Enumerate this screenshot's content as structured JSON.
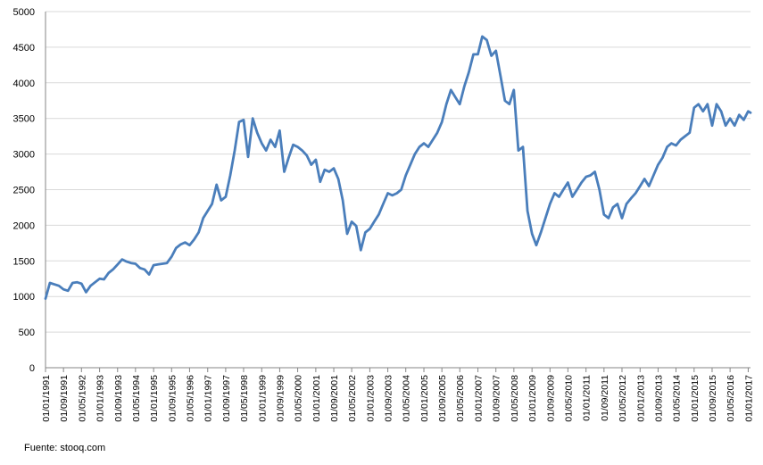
{
  "source_note": "Fuente: stooq.com",
  "chart_data": {
    "type": "line",
    "title": "",
    "xlabel": "",
    "ylabel": "",
    "ylim": [
      0,
      5000
    ],
    "yticks": [
      0,
      500,
      1000,
      1500,
      2000,
      2500,
      3000,
      3500,
      4000,
      4500,
      5000
    ],
    "grid": "horizontal",
    "legend": "none",
    "x_tick_labels": [
      "01/01/1991",
      "01/09/1991",
      "01/05/1992",
      "01/01/1993",
      "01/09/1993",
      "01/05/1994",
      "01/01/1995",
      "01/09/1995",
      "01/05/1996",
      "01/01/1997",
      "01/09/1997",
      "01/05/1998",
      "01/01/1999",
      "01/09/1999",
      "01/05/2000",
      "01/01/2001",
      "01/09/2001",
      "01/05/2002",
      "01/01/2003",
      "01/09/2003",
      "01/05/2004",
      "01/01/2005",
      "01/09/2005",
      "01/05/2006",
      "01/01/2007",
      "01/09/2007",
      "01/05/2008",
      "01/01/2009",
      "01/09/2009",
      "01/05/2010",
      "01/01/2011",
      "01/09/2011",
      "01/05/2012",
      "01/01/2013",
      "01/09/2013",
      "01/05/2014",
      "01/01/2015",
      "01/09/2015",
      "01/05/2016",
      "01/01/2017"
    ],
    "series": [
      {
        "color": "#4a7ebb",
        "points": [
          [
            "1991-01-01",
            970
          ],
          [
            "1991-03-01",
            1190
          ],
          [
            "1991-05-01",
            1170
          ],
          [
            "1991-07-01",
            1150
          ],
          [
            "1991-09-01",
            1100
          ],
          [
            "1991-11-01",
            1080
          ],
          [
            "1992-01-01",
            1190
          ],
          [
            "1992-03-01",
            1200
          ],
          [
            "1992-05-01",
            1180
          ],
          [
            "1992-07-01",
            1060
          ],
          [
            "1992-09-01",
            1150
          ],
          [
            "1992-11-01",
            1200
          ],
          [
            "1993-01-01",
            1250
          ],
          [
            "1993-03-01",
            1240
          ],
          [
            "1993-05-01",
            1330
          ],
          [
            "1993-07-01",
            1380
          ],
          [
            "1993-09-01",
            1450
          ],
          [
            "1993-11-01",
            1520
          ],
          [
            "1994-01-01",
            1490
          ],
          [
            "1994-03-01",
            1470
          ],
          [
            "1994-05-01",
            1460
          ],
          [
            "1994-07-01",
            1400
          ],
          [
            "1994-09-01",
            1380
          ],
          [
            "1994-11-01",
            1310
          ],
          [
            "1995-01-01",
            1440
          ],
          [
            "1995-03-01",
            1450
          ],
          [
            "1995-05-01",
            1460
          ],
          [
            "1995-07-01",
            1470
          ],
          [
            "1995-09-01",
            1560
          ],
          [
            "1995-11-01",
            1680
          ],
          [
            "1996-01-01",
            1730
          ],
          [
            "1996-03-01",
            1760
          ],
          [
            "1996-05-01",
            1720
          ],
          [
            "1996-07-01",
            1800
          ],
          [
            "1996-09-01",
            1900
          ],
          [
            "1996-11-01",
            2100
          ],
          [
            "1997-01-01",
            2200
          ],
          [
            "1997-03-01",
            2300
          ],
          [
            "1997-05-01",
            2570
          ],
          [
            "1997-07-01",
            2350
          ],
          [
            "1997-09-01",
            2400
          ],
          [
            "1997-11-01",
            2700
          ],
          [
            "1998-01-01",
            3050
          ],
          [
            "1998-03-01",
            3450
          ],
          [
            "1998-05-01",
            3480
          ],
          [
            "1998-07-01",
            2960
          ],
          [
            "1998-09-01",
            3500
          ],
          [
            "1998-11-01",
            3300
          ],
          [
            "1999-01-01",
            3150
          ],
          [
            "1999-03-01",
            3050
          ],
          [
            "1999-05-01",
            3200
          ],
          [
            "1999-07-01",
            3100
          ],
          [
            "1999-09-01",
            3330
          ],
          [
            "1999-11-01",
            2750
          ],
          [
            "2000-01-01",
            2950
          ],
          [
            "2000-03-01",
            3130
          ],
          [
            "2000-05-01",
            3100
          ],
          [
            "2000-07-01",
            3050
          ],
          [
            "2000-09-01",
            2980
          ],
          [
            "2000-11-01",
            2850
          ],
          [
            "2001-01-01",
            2920
          ],
          [
            "2001-03-01",
            2610
          ],
          [
            "2001-05-01",
            2780
          ],
          [
            "2001-07-01",
            2750
          ],
          [
            "2001-09-01",
            2800
          ],
          [
            "2001-11-01",
            2650
          ],
          [
            "2002-01-01",
            2350
          ],
          [
            "2002-03-01",
            1880
          ],
          [
            "2002-05-01",
            2050
          ],
          [
            "2002-07-01",
            1990
          ],
          [
            "2002-09-01",
            1650
          ],
          [
            "2002-11-01",
            1900
          ],
          [
            "2003-01-01",
            1950
          ],
          [
            "2003-03-01",
            2050
          ],
          [
            "2003-05-01",
            2150
          ],
          [
            "2003-07-01",
            2300
          ],
          [
            "2003-09-01",
            2450
          ],
          [
            "2003-11-01",
            2420
          ],
          [
            "2004-01-01",
            2450
          ],
          [
            "2004-03-01",
            2500
          ],
          [
            "2004-05-01",
            2700
          ],
          [
            "2004-07-01",
            2850
          ],
          [
            "2004-09-01",
            3000
          ],
          [
            "2004-11-01",
            3100
          ],
          [
            "2005-01-01",
            3150
          ],
          [
            "2005-03-01",
            3100
          ],
          [
            "2005-05-01",
            3200
          ],
          [
            "2005-07-01",
            3300
          ],
          [
            "2005-09-01",
            3450
          ],
          [
            "2005-11-01",
            3700
          ],
          [
            "2006-01-01",
            3900
          ],
          [
            "2006-03-01",
            3800
          ],
          [
            "2006-05-01",
            3700
          ],
          [
            "2006-07-01",
            3950
          ],
          [
            "2006-09-01",
            4150
          ],
          [
            "2006-11-01",
            4400
          ],
          [
            "2007-01-01",
            4400
          ],
          [
            "2007-03-01",
            4650
          ],
          [
            "2007-05-01",
            4600
          ],
          [
            "2007-07-01",
            4380
          ],
          [
            "2007-09-01",
            4450
          ],
          [
            "2007-11-01",
            4100
          ],
          [
            "2008-01-01",
            3750
          ],
          [
            "2008-03-01",
            3700
          ],
          [
            "2008-05-01",
            3900
          ],
          [
            "2008-07-01",
            3050
          ],
          [
            "2008-09-01",
            3100
          ],
          [
            "2008-11-01",
            2200
          ],
          [
            "2009-01-01",
            1880
          ],
          [
            "2009-03-01",
            1720
          ],
          [
            "2009-05-01",
            1900
          ],
          [
            "2009-07-01",
            2100
          ],
          [
            "2009-09-01",
            2300
          ],
          [
            "2009-11-01",
            2450
          ],
          [
            "2010-01-01",
            2400
          ],
          [
            "2010-03-01",
            2500
          ],
          [
            "2010-05-01",
            2600
          ],
          [
            "2010-07-01",
            2400
          ],
          [
            "2010-09-01",
            2500
          ],
          [
            "2010-11-01",
            2600
          ],
          [
            "2011-01-01",
            2680
          ],
          [
            "2011-03-01",
            2700
          ],
          [
            "2011-05-01",
            2750
          ],
          [
            "2011-07-01",
            2500
          ],
          [
            "2011-09-01",
            2150
          ],
          [
            "2011-11-01",
            2100
          ],
          [
            "2012-01-01",
            2250
          ],
          [
            "2012-03-01",
            2300
          ],
          [
            "2012-05-01",
            2100
          ],
          [
            "2012-07-01",
            2300
          ],
          [
            "2012-09-01",
            2380
          ],
          [
            "2012-11-01",
            2450
          ],
          [
            "2013-01-01",
            2550
          ],
          [
            "2013-03-01",
            2650
          ],
          [
            "2013-05-01",
            2550
          ],
          [
            "2013-07-01",
            2700
          ],
          [
            "2013-09-01",
            2850
          ],
          [
            "2013-11-01",
            2950
          ],
          [
            "2014-01-01",
            3100
          ],
          [
            "2014-03-01",
            3150
          ],
          [
            "2014-05-01",
            3120
          ],
          [
            "2014-07-01",
            3200
          ],
          [
            "2014-09-01",
            3250
          ],
          [
            "2014-11-01",
            3300
          ],
          [
            "2015-01-01",
            3650
          ],
          [
            "2015-03-01",
            3700
          ],
          [
            "2015-05-01",
            3600
          ],
          [
            "2015-07-01",
            3700
          ],
          [
            "2015-09-01",
            3400
          ],
          [
            "2015-11-01",
            3700
          ],
          [
            "2016-01-01",
            3600
          ],
          [
            "2016-03-01",
            3400
          ],
          [
            "2016-05-01",
            3500
          ],
          [
            "2016-07-01",
            3400
          ],
          [
            "2016-09-01",
            3550
          ],
          [
            "2016-11-01",
            3480
          ],
          [
            "2017-01-01",
            3600
          ],
          [
            "2017-02-01",
            3580
          ]
        ]
      }
    ]
  }
}
